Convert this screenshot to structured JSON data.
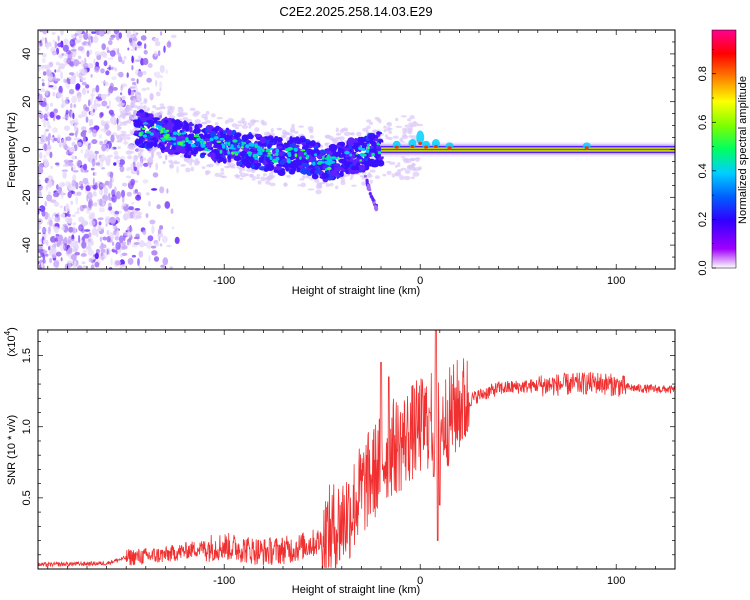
{
  "title": "C2E2.2025.258.14.03.E29",
  "spectrogram": {
    "type": "heatmap",
    "xlabel": "Height of straight line (km)",
    "ylabel": "Frequency (Hz)",
    "xlim": [
      -195,
      130
    ],
    "ylim": [
      -50,
      50
    ],
    "xticks": [
      -100,
      0,
      100
    ],
    "yticks": [
      -40,
      -20,
      0,
      20,
      40
    ],
    "colorbar": {
      "label": "Normalized spectral amplitude",
      "range": [
        0.0,
        0.98
      ],
      "ticks": [
        "0.0",
        "0.2",
        "0.4",
        "0.6",
        "0.8"
      ],
      "colors": [
        "#ffffff",
        "#a000ff",
        "#3000ff",
        "#0060ff",
        "#00d0ff",
        "#00ff60",
        "#80ff00",
        "#ffff00",
        "#ff8000",
        "#ff0000",
        "#ff0090"
      ]
    },
    "features": {
      "noise_region_x": [
        -195,
        -122
      ],
      "noise_fade_x": [
        -158,
        -122
      ],
      "band_x": [
        -145,
        -20
      ],
      "band_center_freq": [
        [
          -145,
          9
        ],
        [
          -130,
          6
        ],
        [
          -110,
          3
        ],
        [
          -90,
          0
        ],
        [
          -70,
          -3
        ],
        [
          -60,
          -2
        ],
        [
          -50,
          -6
        ],
        [
          -40,
          -4
        ],
        [
          -30,
          -2
        ],
        [
          -20,
          1
        ]
      ],
      "tail_from": [
        -28,
        -12
      ],
      "tail_to": [
        -22,
        -25
      ],
      "tone_x": [
        -20,
        130
      ],
      "tone_freq": 0
    }
  },
  "snr_chart": {
    "type": "line",
    "xlabel": "Height of straight line (km)",
    "ylabel": "SNR (10 * v/v)",
    "scale_label": "(x10",
    "scale_exp": "4",
    "xlim": [
      -195,
      130
    ],
    "ylim": [
      0,
      1.68
    ],
    "xticks": [
      -100,
      0,
      100
    ],
    "yticks": [
      "0.5",
      "1.0",
      "1.5"
    ],
    "line_color": "#f03030",
    "profile": [
      [
        -195,
        0.03
      ],
      [
        -160,
        0.04
      ],
      [
        -150,
        0.08
      ],
      [
        -130,
        0.1
      ],
      [
        -115,
        0.14
      ],
      [
        -100,
        0.16
      ],
      [
        -80,
        0.12
      ],
      [
        -65,
        0.14
      ],
      [
        -50,
        0.2
      ],
      [
        -42,
        0.3
      ],
      [
        -35,
        0.42
      ],
      [
        -30,
        0.55
      ],
      [
        -25,
        0.65
      ],
      [
        -20,
        0.75
      ],
      [
        -15,
        0.85
      ],
      [
        -10,
        0.88
      ],
      [
        -5,
        0.95
      ],
      [
        0,
        1.0
      ],
      [
        5,
        1.05
      ],
      [
        10,
        1.0
      ],
      [
        20,
        1.15
      ],
      [
        30,
        1.22
      ],
      [
        40,
        1.27
      ],
      [
        60,
        1.29
      ],
      [
        80,
        1.3
      ],
      [
        90,
        1.31
      ],
      [
        100,
        1.29
      ],
      [
        110,
        1.27
      ],
      [
        130,
        1.26
      ]
    ],
    "spikes": [
      [
        -20,
        1.45
      ],
      [
        -16,
        1.35
      ],
      [
        5,
        1.1
      ],
      [
        8,
        1.68
      ]
    ],
    "dip": [
      [
        7,
        0.65
      ],
      [
        9,
        0.2
      ],
      [
        10,
        0.45
      ]
    ]
  }
}
